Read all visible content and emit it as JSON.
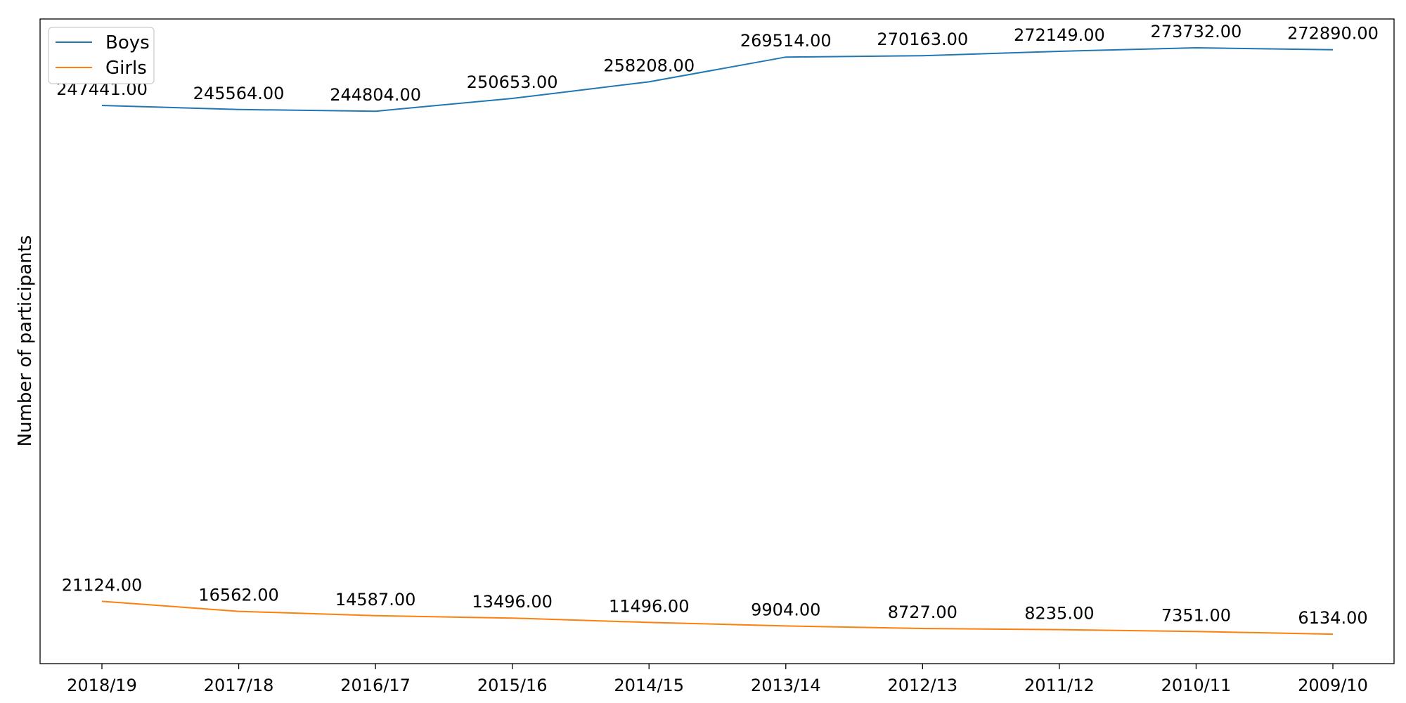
{
  "chart_data": {
    "type": "line",
    "title": "",
    "xlabel": "",
    "ylabel": "Number of participants",
    "categories": [
      "2018/19",
      "2017/18",
      "2016/17",
      "2015/16",
      "2014/15",
      "2013/14",
      "2012/13",
      "2011/12",
      "2010/11",
      "2009/10"
    ],
    "series": [
      {
        "name": "Boys",
        "color": "#1f77b4",
        "values": [
          247441,
          245564,
          244804,
          250653,
          258208,
          269514,
          270163,
          272149,
          273732,
          272890
        ],
        "labels": [
          "247441.00",
          "245564.00",
          "244804.00",
          "250653.00",
          "258208.00",
          "269514.00",
          "270163.00",
          "272149.00",
          "273732.00",
          "272890.00"
        ]
      },
      {
        "name": "Girls",
        "color": "#ff7f0e",
        "values": [
          21124,
          16562,
          14587,
          13496,
          11496,
          9904,
          8727,
          8235,
          7351,
          6134
        ],
        "labels": [
          "21124.00",
          "16562.00",
          "14587.00",
          "13496.00",
          "11496.00",
          "9904.00",
          "8727.00",
          "8235.00",
          "7351.00",
          "6134.00"
        ]
      }
    ],
    "ylim": [
      -7300,
      286900
    ],
    "y_ticks_shown": false,
    "grid": false,
    "legend": {
      "position": "top-left"
    }
  }
}
